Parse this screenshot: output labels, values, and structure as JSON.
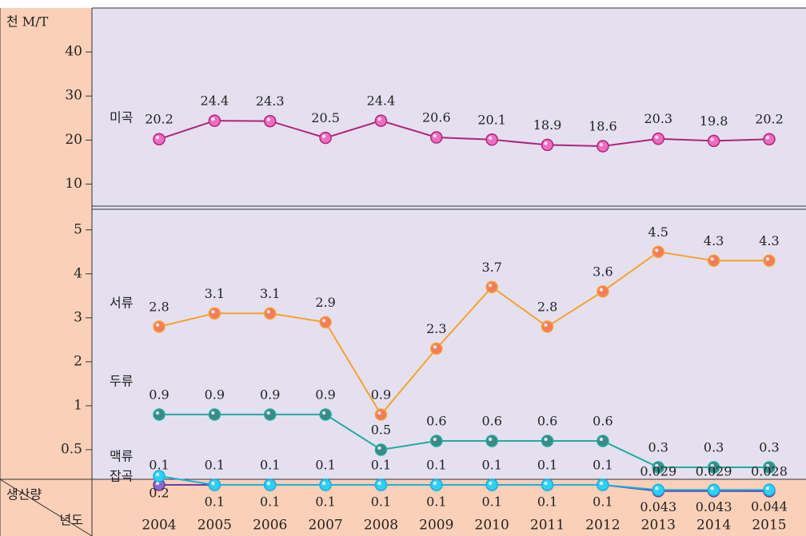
{
  "chart_data": {
    "type": "line",
    "y_unit": "천 M/T",
    "corner_top": "생산량",
    "corner_bottom": "년도",
    "categories": [
      "2004",
      "2005",
      "2006",
      "2007",
      "2008",
      "2009",
      "2010",
      "2011",
      "2012",
      "2013",
      "2014",
      "2015"
    ],
    "panels": [
      {
        "ylim": [
          5,
          50
        ],
        "yticks": [
          10,
          20,
          30,
          40
        ],
        "series": [
          {
            "name": "미곡",
            "color": "#b0237c",
            "marker": "#f06cc0",
            "values": [
              20.2,
              24.4,
              24.3,
              20.5,
              24.4,
              20.6,
              20.1,
              18.9,
              18.6,
              20.3,
              19.8,
              20.2
            ]
          }
        ]
      },
      {
        "ylim": [
          0.2,
          5.45
        ],
        "yticks": [
          0.5,
          1,
          2,
          3,
          4,
          5
        ],
        "series": [
          {
            "name": "서류",
            "color": "#f5a230",
            "marker": "#f57b5a",
            "values": [
              2.8,
              3.1,
              3.1,
              2.9,
              0.9,
              2.3,
              3.7,
              2.8,
              3.6,
              4.5,
              4.3,
              4.3
            ]
          },
          {
            "name": "두류",
            "color": "#22aaa0",
            "marker": "#3a8a88",
            "values": [
              0.9,
              0.9,
              0.9,
              0.9,
              0.5,
              0.6,
              0.6,
              0.6,
              0.6,
              0.3,
              0.3,
              0.3
            ]
          },
          {
            "name": "맥류",
            "color": "#6a3fa0",
            "marker": "#8a6ac8",
            "values": [
              0.1,
              0.1,
              0.1,
              0.1,
              0.1,
              0.1,
              0.1,
              0.1,
              0.1,
              0.029,
              0.029,
              0.028
            ]
          },
          {
            "name": "잡곡",
            "color": "#14b2e6",
            "marker": "#2fd0f5",
            "values": [
              0.2,
              0.1,
              0.1,
              0.1,
              0.1,
              0.1,
              0.1,
              0.1,
              0.1,
              0.043,
              0.043,
              0.044
            ]
          }
        ]
      }
    ]
  }
}
